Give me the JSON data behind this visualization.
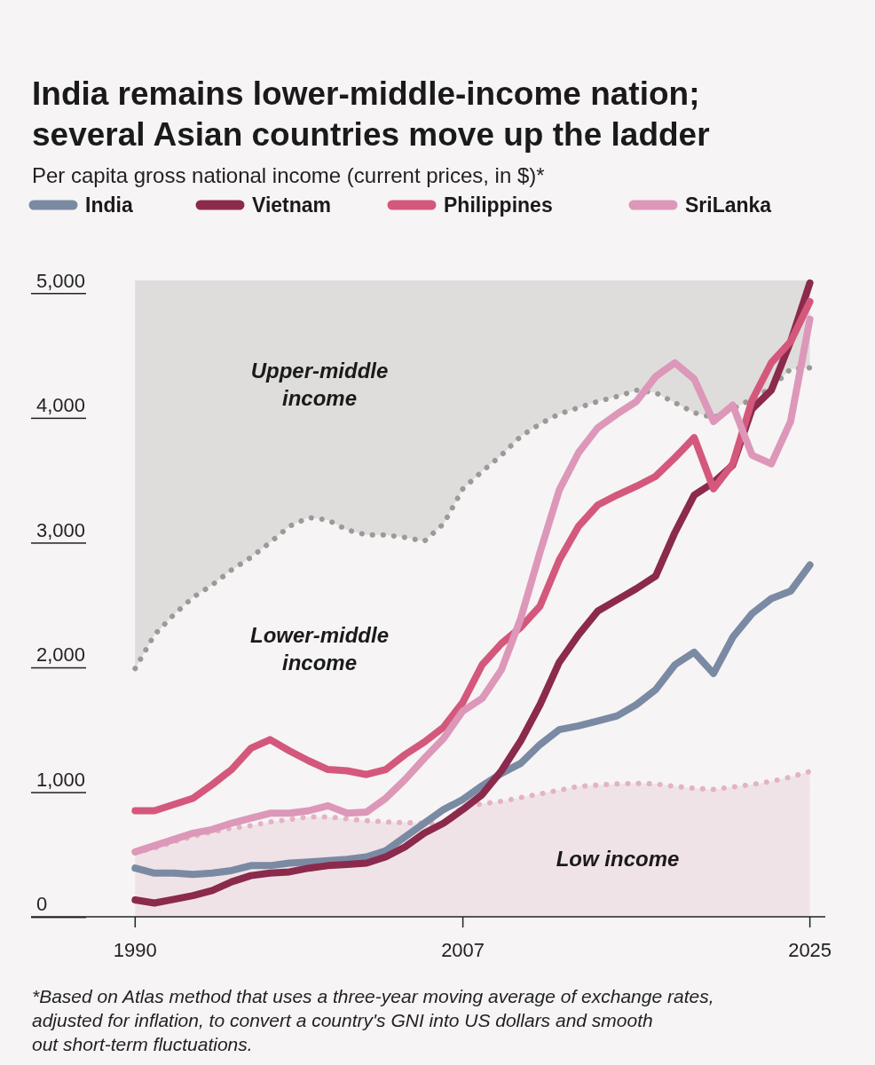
{
  "chart_data": {
    "type": "line",
    "title": "India remains lower-middle-income nation; several Asian countries move up the ladder",
    "subtitle": "Per capita gross national income (current prices, in $)*",
    "x": [
      1990,
      1991,
      1992,
      1993,
      1994,
      1995,
      1996,
      1997,
      1998,
      1999,
      2000,
      2001,
      2002,
      2003,
      2004,
      2005,
      2006,
      2007,
      2008,
      2009,
      2010,
      2011,
      2012,
      2013,
      2014,
      2015,
      2016,
      2017,
      2018,
      2019,
      2020,
      2021,
      2022,
      2023,
      2024,
      2025
    ],
    "xlim": [
      1984.6,
      2025.8
    ],
    "xticks": [
      1990,
      2007,
      2025
    ],
    "ylim": [
      -100,
      5000
    ],
    "yticks": [
      {
        "value": 0,
        "label": "0"
      },
      {
        "value": 1000,
        "label": "1,000"
      },
      {
        "value": 2000,
        "label": "2,000"
      },
      {
        "value": 3000,
        "label": "3,000"
      },
      {
        "value": 4000,
        "label": "4,000"
      },
      {
        "value": 5000,
        "label": "5,000"
      }
    ],
    "grid": false,
    "legend": "top left",
    "marker": "none",
    "series": [
      {
        "color": "#9a9a96",
        "line_style": "dotted",
        "values": [
          1890,
          2160,
          2320,
          2460,
          2560,
          2680,
          2780,
          2900,
          3030,
          3100,
          3080,
          3000,
          2960,
          2960,
          2940,
          2910,
          3050,
          3330,
          3470,
          3600,
          3750,
          3850,
          3930,
          3980,
          4030,
          4070,
          4120,
          4100,
          4020,
          3940,
          3900,
          3970,
          4050,
          4140,
          4290,
          4300
        ],
        "lower": [
          1890,
          2160,
          2320,
          2460,
          2560,
          2680,
          2780,
          2900,
          3030,
          3100,
          3080,
          3000,
          2960,
          2960,
          2940,
          2910,
          3050,
          3330,
          3470,
          3600,
          3750,
          3850,
          3930,
          3980,
          4030,
          4070,
          4120,
          4100,
          4020,
          3940,
          3900,
          3970,
          4050,
          4140,
          4290,
          4300
        ],
        "upper": [
          5000,
          5000,
          5000,
          5000,
          5000,
          5000,
          5000,
          5000,
          5000,
          5000,
          5000,
          5000,
          5000,
          5000,
          5000,
          5000,
          5000,
          5000,
          5000,
          5000,
          5000,
          5000,
          5000,
          5000,
          5000,
          5000,
          5000,
          5000,
          5000,
          5000,
          5000,
          5000,
          5000,
          5000,
          5000,
          5000
        ]
      },
      {
        "color": "#e2b3c5",
        "line_style": "dotted",
        "values": [
          415,
          450,
          500,
          545,
          580,
          610,
          630,
          660,
          680,
          700,
          700,
          685,
          670,
          660,
          655,
          650,
          650,
          780,
          805,
          825,
          855,
          885,
          915,
          945,
          955,
          965,
          970,
          965,
          945,
          930,
          920,
          940,
          960,
          985,
          1020,
          1065
        ],
        "lower": [
          -100,
          -100,
          -100,
          -100,
          -100,
          -100,
          -100,
          -100,
          -100,
          -100,
          -100,
          -100,
          -100,
          -100,
          -100,
          -100,
          -100,
          -100,
          -100,
          -100,
          -100,
          -100,
          -100,
          -100,
          -100,
          -100,
          -100,
          -100,
          -100,
          -100,
          -100,
          -100,
          -100,
          -100,
          -100,
          -100
        ],
        "upper": [
          415,
          450,
          500,
          545,
          580,
          610,
          630,
          660,
          680,
          700,
          700,
          685,
          670,
          660,
          655,
          650,
          650,
          780,
          805,
          825,
          855,
          885,
          915,
          945,
          955,
          965,
          970,
          965,
          945,
          930,
          920,
          940,
          960,
          985,
          1020,
          1065
        ]
      },
      {
        "name": "India",
        "color": "#7b8aa3",
        "values": [
          290,
          250,
          250,
          240,
          250,
          270,
          310,
          310,
          330,
          340,
          350,
          360,
          380,
          430,
          540,
          650,
          760,
          840,
          950,
          1050,
          1130,
          1280,
          1400,
          1430,
          1470,
          1510,
          1600,
          1720,
          1920,
          2020,
          1850,
          2140,
          2330,
          2450,
          2510,
          2720
        ]
      },
      {
        "name": "Vietnam",
        "color": "#8b2a4c",
        "values": [
          35,
          10,
          40,
          70,
          110,
          180,
          230,
          250,
          260,
          290,
          310,
          320,
          330,
          380,
          460,
          570,
          650,
          760,
          880,
          1070,
          1310,
          1600,
          1940,
          2160,
          2350,
          2440,
          2530,
          2630,
          2980,
          3280,
          3380,
          3520,
          3970,
          4120,
          4510,
          4980
        ]
      },
      {
        "name": "Philippines",
        "color": "#d4587c",
        "values": [
          750,
          750,
          800,
          850,
          960,
          1080,
          1250,
          1320,
          1230,
          1150,
          1080,
          1070,
          1040,
          1080,
          1200,
          1300,
          1420,
          1620,
          1920,
          2090,
          2220,
          2390,
          2760,
          3030,
          3200,
          3280,
          3350,
          3430,
          3580,
          3740,
          3330,
          3530,
          4040,
          4340,
          4510,
          4830
        ]
      },
      {
        "name": "SriLanka",
        "color": "#dd97b8",
        "values": [
          420,
          470,
          520,
          570,
          600,
          650,
          690,
          730,
          730,
          750,
          790,
          730,
          740,
          850,
          1000,
          1170,
          1330,
          1550,
          1650,
          1880,
          2290,
          2820,
          3320,
          3620,
          3820,
          3930,
          4030,
          4230,
          4340,
          4210,
          3870,
          4000,
          3600,
          3530,
          3870,
          4690
        ]
      }
    ],
    "annotations": [
      "Upper-middle income",
      "Lower-middle income",
      "Low income",
      "*Based on Atlas method that uses a three-year moving average of exchange rates, adjusted for inflation, to convert a country's GNI into US dollars and smooth out short-term fluctuations."
    ]
  }
}
